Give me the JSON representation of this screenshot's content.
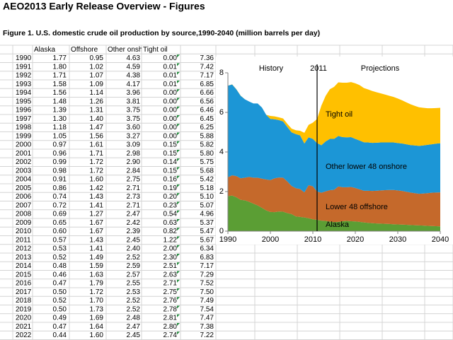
{
  "header": {
    "title": "AEO2013 Early Release Overview - Figures",
    "caption": "Figure 1. U.S. domestic crude oil production by source,1990-2040 (million barrels per day)"
  },
  "table": {
    "columns": [
      "Alaska",
      "Offshore",
      "Other onshore",
      "Tight oil"
    ],
    "rows": [
      [
        "1990",
        "1.77",
        "0.95",
        "4.63",
        "0.00",
        "7.36"
      ],
      [
        "1991",
        "1.80",
        "1.02",
        "4.59",
        "0.01",
        "7.42"
      ],
      [
        "1992",
        "1.71",
        "1.07",
        "4.38",
        "0.01",
        "7.17"
      ],
      [
        "1993",
        "1.58",
        "1.09",
        "4.17",
        "0.01",
        "6.85"
      ],
      [
        "1994",
        "1.56",
        "1.14",
        "3.96",
        "0.00",
        "6.66"
      ],
      [
        "1995",
        "1.48",
        "1.26",
        "3.81",
        "0.00",
        "6.56"
      ],
      [
        "1996",
        "1.39",
        "1.31",
        "3.75",
        "0.00",
        "6.46"
      ],
      [
        "1997",
        "1.30",
        "1.40",
        "3.75",
        "0.00",
        "6.45"
      ],
      [
        "1998",
        "1.18",
        "1.47",
        "3.60",
        "0.00",
        "6.25"
      ],
      [
        "1999",
        "1.05",
        "1.56",
        "3.27",
        "0.00",
        "5.88"
      ],
      [
        "2000",
        "0.97",
        "1.61",
        "3.09",
        "0.15",
        "5.82"
      ],
      [
        "2001",
        "0.96",
        "1.71",
        "2.98",
        "0.15",
        "5.80"
      ],
      [
        "2002",
        "0.99",
        "1.72",
        "2.90",
        "0.14",
        "5.75"
      ],
      [
        "2003",
        "0.98",
        "1.72",
        "2.84",
        "0.15",
        "5.68"
      ],
      [
        "2004",
        "0.91",
        "1.60",
        "2.75",
        "0.16",
        "5.42"
      ],
      [
        "2005",
        "0.86",
        "1.42",
        "2.71",
        "0.19",
        "5.18"
      ],
      [
        "2006",
        "0.74",
        "1.43",
        "2.73",
        "0.20",
        "5.10"
      ],
      [
        "2007",
        "0.72",
        "1.41",
        "2.71",
        "0.23",
        "5.07"
      ],
      [
        "2008",
        "0.69",
        "1.27",
        "2.47",
        "0.54",
        "4.96"
      ],
      [
        "2009",
        "0.65",
        "1.67",
        "2.42",
        "0.63",
        "5.37"
      ],
      [
        "2010",
        "0.60",
        "1.67",
        "2.39",
        "0.82",
        "5.47"
      ],
      [
        "2011",
        "0.57",
        "1.43",
        "2.45",
        "1.22",
        "5.67"
      ],
      [
        "2012",
        "0.53",
        "1.41",
        "2.40",
        "2.00",
        "6.34"
      ],
      [
        "2013",
        "0.52",
        "1.49",
        "2.52",
        "2.30",
        "6.83"
      ],
      [
        "2014",
        "0.48",
        "1.59",
        "2.59",
        "2.51",
        "7.17"
      ],
      [
        "2015",
        "0.46",
        "1.63",
        "2.57",
        "2.63",
        "7.29"
      ],
      [
        "2016",
        "0.47",
        "1.79",
        "2.55",
        "2.71",
        "7.52"
      ],
      [
        "2017",
        "0.50",
        "1.72",
        "2.53",
        "2.75",
        "7.50"
      ],
      [
        "2018",
        "0.52",
        "1.70",
        "2.52",
        "2.76",
        "7.49"
      ],
      [
        "2019",
        "0.50",
        "1.73",
        "2.52",
        "2.78",
        "7.54"
      ],
      [
        "2020",
        "0.49",
        "1.69",
        "2.48",
        "2.81",
        "7.47"
      ],
      [
        "2021",
        "0.47",
        "1.64",
        "2.47",
        "2.80",
        "7.38"
      ],
      [
        "2022",
        "0.44",
        "1.60",
        "2.45",
        "2.74",
        "7.22"
      ]
    ]
  },
  "chart_data": {
    "type": "stacked_area",
    "x": [
      1990,
      1991,
      1992,
      1993,
      1994,
      1995,
      1996,
      1997,
      1998,
      1999,
      2000,
      2001,
      2002,
      2003,
      2004,
      2005,
      2006,
      2007,
      2008,
      2009,
      2010,
      2011,
      2012,
      2013,
      2014,
      2015,
      2016,
      2017,
      2018,
      2019,
      2020,
      2021,
      2022,
      2023,
      2024,
      2025,
      2026,
      2027,
      2028,
      2029,
      2030,
      2031,
      2032,
      2033,
      2034,
      2035,
      2036,
      2037,
      2038,
      2039,
      2040
    ],
    "series": [
      {
        "name": "Alaska",
        "color": "#5b9e34",
        "values": [
          1.77,
          1.8,
          1.71,
          1.58,
          1.56,
          1.48,
          1.39,
          1.3,
          1.18,
          1.05,
          0.97,
          0.96,
          0.99,
          0.98,
          0.91,
          0.86,
          0.74,
          0.72,
          0.69,
          0.65,
          0.6,
          0.57,
          0.53,
          0.52,
          0.48,
          0.46,
          0.47,
          0.5,
          0.52,
          0.5,
          0.49,
          0.47,
          0.44,
          0.42,
          0.4,
          0.39,
          0.38,
          0.37,
          0.36,
          0.35,
          0.34,
          0.33,
          0.32,
          0.31,
          0.3,
          0.29,
          0.28,
          0.27,
          0.26,
          0.25,
          0.24
        ]
      },
      {
        "name": "Lower 48 offshore",
        "color": "#c5692b",
        "values": [
          0.95,
          1.02,
          1.07,
          1.09,
          1.14,
          1.26,
          1.31,
          1.4,
          1.47,
          1.56,
          1.61,
          1.71,
          1.72,
          1.72,
          1.6,
          1.42,
          1.43,
          1.41,
          1.27,
          1.67,
          1.67,
          1.43,
          1.41,
          1.49,
          1.59,
          1.63,
          1.79,
          1.72,
          1.7,
          1.73,
          1.69,
          1.64,
          1.6,
          1.62,
          1.63,
          1.65,
          1.68,
          1.7,
          1.72,
          1.73,
          1.72,
          1.7,
          1.67,
          1.64,
          1.62,
          1.6,
          1.62,
          1.65,
          1.68,
          1.7,
          1.72
        ]
      },
      {
        "name": "Other lower 48 onshore",
        "color": "#1c96d6",
        "values": [
          4.63,
          4.59,
          4.38,
          4.17,
          3.96,
          3.81,
          3.75,
          3.75,
          3.6,
          3.27,
          3.09,
          2.98,
          2.9,
          2.84,
          2.75,
          2.71,
          2.73,
          2.71,
          2.47,
          2.42,
          2.39,
          2.45,
          2.4,
          2.52,
          2.59,
          2.57,
          2.55,
          2.53,
          2.52,
          2.52,
          2.48,
          2.47,
          2.45,
          2.44,
          2.43,
          2.43,
          2.42,
          2.41,
          2.4,
          2.4,
          2.39,
          2.4,
          2.4,
          2.4,
          2.41,
          2.42,
          2.43,
          2.44,
          2.45,
          2.47,
          2.48
        ]
      },
      {
        "name": "Tight oil",
        "color": "#ffc000",
        "values": [
          0.0,
          0.01,
          0.01,
          0.01,
          0.0,
          0.0,
          0.0,
          0.0,
          0.0,
          0.0,
          0.15,
          0.15,
          0.14,
          0.15,
          0.16,
          0.19,
          0.2,
          0.23,
          0.54,
          0.63,
          0.82,
          1.22,
          2.0,
          2.3,
          2.51,
          2.63,
          2.71,
          2.75,
          2.76,
          2.78,
          2.81,
          2.8,
          2.74,
          2.68,
          2.62,
          2.55,
          2.48,
          2.42,
          2.36,
          2.3,
          2.25,
          2.18,
          2.12,
          2.06,
          2.0,
          1.95,
          1.9,
          1.85,
          1.82,
          1.8,
          1.79
        ]
      }
    ],
    "xlim": [
      1990,
      2040
    ],
    "xticks": [
      1990,
      2000,
      2010,
      2020,
      2030,
      2040
    ],
    "ylim": [
      0,
      8
    ],
    "yticks": [
      0,
      2,
      4,
      6,
      8
    ],
    "annotations": [
      "History",
      "2011",
      "Projections"
    ],
    "divider": 2011
  }
}
